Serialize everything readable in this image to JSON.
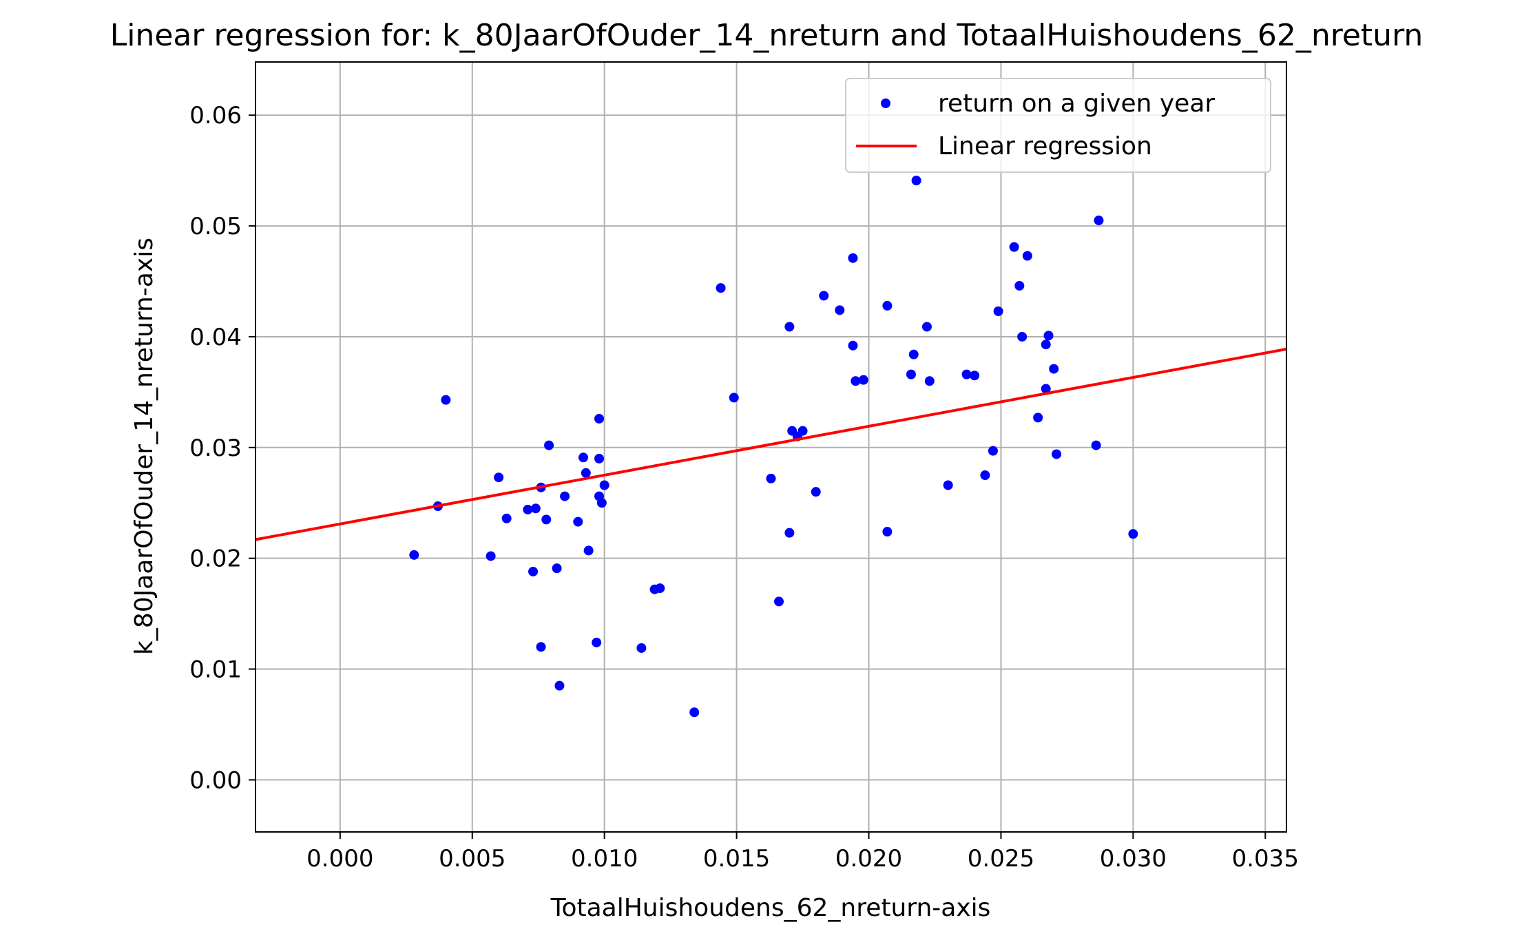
{
  "chart_data": {
    "type": "scatter",
    "title": "Linear regression for: k_80JaarOfOuder_14_nreturn and TotaalHuishoudens_62_nreturn",
    "xlabel": "TotaalHuishoudens_62_nreturn-axis",
    "ylabel": "k_80JaarOfOuder_14_nreturn-axis",
    "xlim": [
      -0.0032,
      0.0358
    ],
    "ylim": [
      -0.0047,
      0.0648
    ],
    "xticks": [
      {
        "value": 0.0,
        "label": "0.000"
      },
      {
        "value": 0.005,
        "label": "0.005"
      },
      {
        "value": 0.01,
        "label": "0.010"
      },
      {
        "value": 0.015,
        "label": "0.015"
      },
      {
        "value": 0.02,
        "label": "0.020"
      },
      {
        "value": 0.025,
        "label": "0.025"
      },
      {
        "value": 0.03,
        "label": "0.030"
      },
      {
        "value": 0.035,
        "label": "0.035"
      }
    ],
    "yticks": [
      {
        "value": 0.0,
        "label": "0.00"
      },
      {
        "value": 0.01,
        "label": "0.01"
      },
      {
        "value": 0.02,
        "label": "0.02"
      },
      {
        "value": 0.03,
        "label": "0.03"
      },
      {
        "value": 0.04,
        "label": "0.04"
      },
      {
        "value": 0.05,
        "label": "0.05"
      },
      {
        "value": 0.06,
        "label": "0.06"
      }
    ],
    "grid": true,
    "legend_position": "top-right",
    "series": [
      {
        "name": "return on a given year",
        "kind": "scatter",
        "color": "#0000ff",
        "points": [
          [
            0.0028,
            0.0203
          ],
          [
            0.0037,
            0.0247
          ],
          [
            0.004,
            0.0343
          ],
          [
            0.0057,
            0.0202
          ],
          [
            0.006,
            0.0273
          ],
          [
            0.0063,
            0.0236
          ],
          [
            0.0071,
            0.0244
          ],
          [
            0.0073,
            0.0188
          ],
          [
            0.0074,
            0.0245
          ],
          [
            0.0076,
            0.0264
          ],
          [
            0.0076,
            0.012
          ],
          [
            0.0078,
            0.0235
          ],
          [
            0.0079,
            0.0302
          ],
          [
            0.0082,
            0.0191
          ],
          [
            0.0083,
            0.0085
          ],
          [
            0.0085,
            0.0256
          ],
          [
            0.009,
            0.0233
          ],
          [
            0.0092,
            0.0291
          ],
          [
            0.0093,
            0.0277
          ],
          [
            0.0094,
            0.0207
          ],
          [
            0.0097,
            0.0124
          ],
          [
            0.0098,
            0.0326
          ],
          [
            0.0098,
            0.029
          ],
          [
            0.0098,
            0.0256
          ],
          [
            0.0099,
            0.025
          ],
          [
            0.01,
            0.0266
          ],
          [
            0.0114,
            0.0119
          ],
          [
            0.0119,
            0.0172
          ],
          [
            0.0121,
            0.0173
          ],
          [
            0.0134,
            0.0061
          ],
          [
            0.0144,
            0.0444
          ],
          [
            0.0149,
            0.0345
          ],
          [
            0.0163,
            0.0272
          ],
          [
            0.0166,
            0.0161
          ],
          [
            0.017,
            0.0223
          ],
          [
            0.017,
            0.0409
          ],
          [
            0.0171,
            0.0315
          ],
          [
            0.0173,
            0.031
          ],
          [
            0.0175,
            0.0315
          ],
          [
            0.018,
            0.026
          ],
          [
            0.0183,
            0.0437
          ],
          [
            0.0189,
            0.0424
          ],
          [
            0.0194,
            0.0471
          ],
          [
            0.0194,
            0.0392
          ],
          [
            0.0195,
            0.036
          ],
          [
            0.0198,
            0.0361
          ],
          [
            0.0207,
            0.0224
          ],
          [
            0.0207,
            0.0428
          ],
          [
            0.0216,
            0.0366
          ],
          [
            0.0217,
            0.0384
          ],
          [
            0.0218,
            0.0541
          ],
          [
            0.0222,
            0.0409
          ],
          [
            0.0223,
            0.036
          ],
          [
            0.023,
            0.0266
          ],
          [
            0.0237,
            0.0366
          ],
          [
            0.024,
            0.0365
          ],
          [
            0.0244,
            0.0275
          ],
          [
            0.0247,
            0.0297
          ],
          [
            0.0249,
            0.0423
          ],
          [
            0.0255,
            0.0481
          ],
          [
            0.0257,
            0.0446
          ],
          [
            0.0258,
            0.04
          ],
          [
            0.026,
            0.0473
          ],
          [
            0.0264,
            0.0327
          ],
          [
            0.0267,
            0.0393
          ],
          [
            0.0267,
            0.0353
          ],
          [
            0.0268,
            0.0401
          ],
          [
            0.027,
            0.0371
          ],
          [
            0.0271,
            0.0294
          ],
          [
            0.0286,
            0.0302
          ],
          [
            0.0287,
            0.0505
          ],
          [
            0.03,
            0.0222
          ]
        ]
      },
      {
        "name": "Linear regression",
        "kind": "line",
        "color": "#ff0000",
        "intercept": 0.0231,
        "slope": 0.4409
      }
    ]
  }
}
